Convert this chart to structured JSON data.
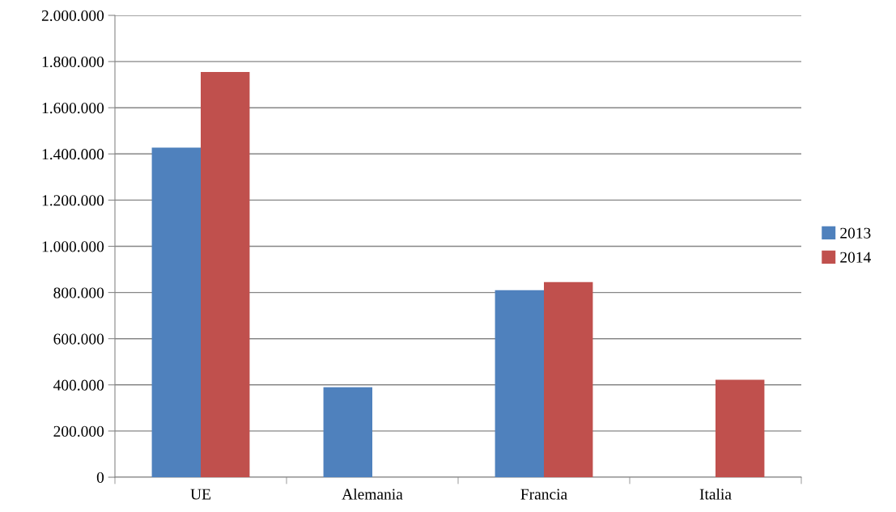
{
  "chart_data": {
    "type": "bar",
    "categories": [
      "UE",
      "Alemania",
      "Francia",
      "Italia"
    ],
    "series": [
      {
        "name": "2013",
        "color": "#4f81bd",
        "values": [
          1427000,
          390000,
          810000,
          null
        ]
      },
      {
        "name": "2014",
        "color": "#c0504d",
        "values": [
          1755000,
          null,
          845000,
          422000
        ]
      }
    ],
    "ylim": [
      0,
      2000000
    ],
    "yticks": [
      {
        "value": 0,
        "label": "0"
      },
      {
        "value": 200000,
        "label": "200.000"
      },
      {
        "value": 400000,
        "label": "400.000"
      },
      {
        "value": 600000,
        "label": "600.000"
      },
      {
        "value": 800000,
        "label": "800.000"
      },
      {
        "value": 1000000,
        "label": "1.000.000"
      },
      {
        "value": 1200000,
        "label": "1.200.000"
      },
      {
        "value": 1400000,
        "label": "1.400.000"
      },
      {
        "value": 1600000,
        "label": "1.600.000"
      },
      {
        "value": 1800000,
        "label": "1.800.000"
      },
      {
        "value": 2000000,
        "label": "2.000.000"
      }
    ],
    "grid": "y",
    "legend": "right"
  }
}
